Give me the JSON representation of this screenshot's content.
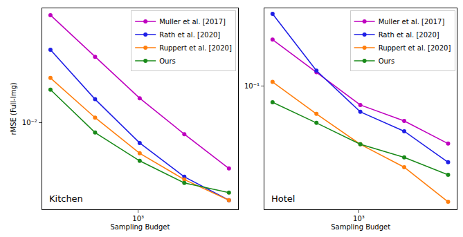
{
  "chart_data": [
    {
      "type": "line",
      "xlabel": "Sampling Budget",
      "ylabel": "rMSE (Full-Img)",
      "annotation": "Kitchen",
      "x": [
        256,
        512,
        1024,
        2048,
        4096
      ],
      "series": [
        {
          "name": "Muller et al. [2017]",
          "color": "#bf00bf",
          "values": [
            0.0477,
            0.0261,
            0.0143,
            0.0085,
            0.00517
          ]
        },
        {
          "name": "Rath et al. [2020]",
          "color": "#1f1fe6",
          "values": [
            0.0289,
            0.0141,
            0.00748,
            0.00458,
            0.00326
          ]
        },
        {
          "name": "Ruppert et al. [2020]",
          "color": "#ff7f0e",
          "values": [
            0.0192,
            0.0108,
            0.00644,
            0.0044,
            0.00326
          ]
        },
        {
          "name": "Ours",
          "color": "#1a8a1a",
          "values": [
            0.0162,
            0.0087,
            0.00577,
            0.00419,
            0.00364
          ]
        }
      ],
      "xlim": [
        225,
        4714
      ],
      "ylim": [
        0.00286,
        0.0527
      ],
      "xticks": [
        {
          "value": 1000,
          "label": "10³"
        }
      ],
      "yticks": [
        {
          "value": 0.01,
          "label": "10⁻²"
        }
      ],
      "log": true,
      "legend": "upper right",
      "marker": "circle"
    },
    {
      "type": "line",
      "xlabel": "Sampling Budget",
      "annotation": "Hotel",
      "x": [
        256,
        512,
        1024,
        2048,
        4096
      ],
      "series": [
        {
          "name": "Muller et al. [2017]",
          "color": "#bf00bf",
          "values": [
            0.168,
            0.117,
            0.0813,
            0.0681,
            0.0529
          ]
        },
        {
          "name": "Rath et al. [2020]",
          "color": "#1f1fe6",
          "values": [
            0.224,
            0.119,
            0.0753,
            0.0607,
            0.043
          ]
        },
        {
          "name": "Ruppert et al. [2020]",
          "color": "#ff7f0e",
          "values": [
            0.105,
            0.0736,
            0.0525,
            0.0407,
            0.0277
          ]
        },
        {
          "name": "Ours",
          "color": "#1a8a1a",
          "values": [
            0.0838,
            0.0666,
            0.0525,
            0.0454,
            0.0374
          ]
        }
      ],
      "xlim": [
        225,
        4714
      ],
      "ylim": [
        0.0255,
        0.238
      ],
      "xticks": [
        {
          "value": 1000,
          "label": "10³"
        }
      ],
      "yticks": [
        {
          "value": 0.1,
          "label": "10⁻¹"
        }
      ],
      "log": true,
      "legend": "upper right",
      "marker": "circle"
    }
  ]
}
